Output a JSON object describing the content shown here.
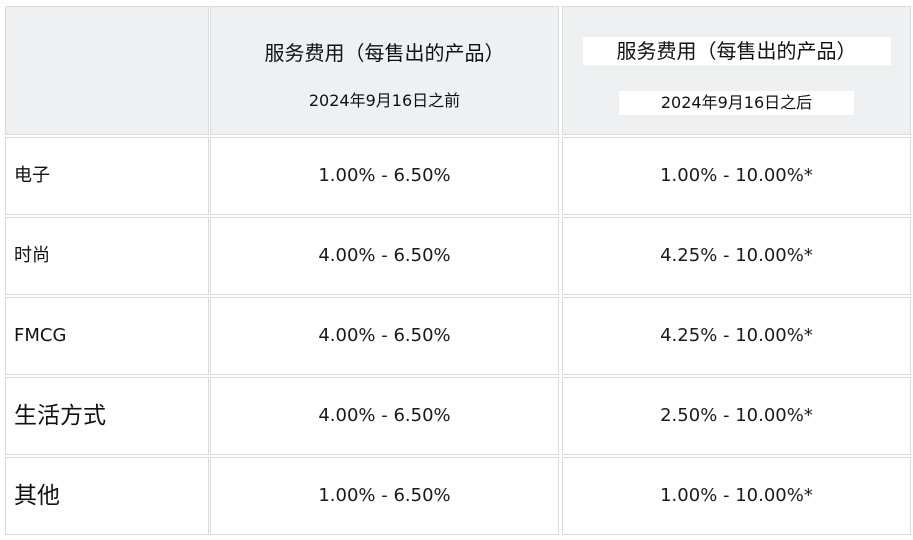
{
  "header": {
    "col_before": {
      "title": "服务费用（每售出的产品）",
      "subtitle": "2024年9月16日之前"
    },
    "col_after": {
      "title": "服务费用（每售出的产品）",
      "subtitle": "2024年9月16日之后"
    }
  },
  "rows": [
    {
      "category": "电子",
      "before": "1.00% - 6.50%",
      "after": "1.00% - 10.00%*"
    },
    {
      "category": "时尚",
      "before": "4.00% - 6.50%",
      "after": "4.25% - 10.00%*"
    },
    {
      "category": "FMCG",
      "before": "4.00% - 6.50%",
      "after": "4.25% - 10.00%*"
    },
    {
      "category": "生活方式",
      "before": "4.00% - 6.50%",
      "after": "2.50% - 10.00%*"
    },
    {
      "category": "其他",
      "before": "1.00% - 6.50%",
      "after": "1.00% - 10.00%*"
    }
  ]
}
